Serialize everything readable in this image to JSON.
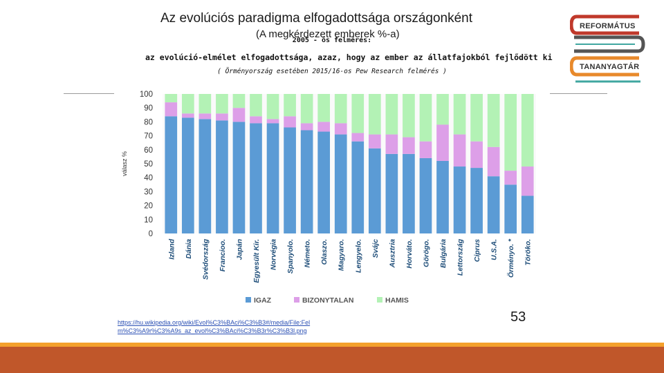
{
  "slide": {
    "title": "Az evolúciós paradigma elfogadottsága országonként",
    "subtitle": "(A megkérdezett emberek %-a)",
    "page_number": "53",
    "source_link_line1": "https://hu.wikipedia.org/wiki/Evol%C3%BAci%C3%B3#/media/File:Fel",
    "source_link_line2": "m%C3%A9r%C3%A9s_az_evol%C3%BAci%C3%B3r%C3%B3l.png",
    "survey_label": "2005 - ös felmérés:",
    "survey_statement": "az evolúció-elmélet elfogadottsága, azaz, hogy az ember az állatfajokból fejlődött ki",
    "survey_note": "( Örményország esetében 2015/16-os Pew Research felmérés )"
  },
  "logo": {
    "line1": "REFORMÁTUS",
    "line2": "TANANYAGTÁR",
    "icon": "book-stack-logo",
    "colors": {
      "red": "#c0392b",
      "gray": "#555555",
      "orange": "#e8892b",
      "teal": "#3fa6a0"
    }
  },
  "chart_data": {
    "type": "bar",
    "stacked": true,
    "ylabel": "válasz %",
    "xlabel": "",
    "ylim": [
      0,
      100
    ],
    "yticks": [
      0,
      10,
      20,
      30,
      40,
      50,
      60,
      70,
      80,
      90,
      100
    ],
    "grid": false,
    "legend_position": "bottom",
    "categories": [
      "Izland",
      "Dánia",
      "Svédország",
      "Francioo.",
      "Japán",
      "Egyesült Kir.",
      "Norvégia",
      "Spanyolo.",
      "Németo.",
      "Olaszo.",
      "Magyaro.",
      "Lengyelo.",
      "Svájc",
      "Ausztria",
      "Horváto.",
      "Görögo.",
      "Bulgária",
      "Lettország",
      "Ciprus",
      "U.S.A.",
      "Örményo. *",
      "Töröko."
    ],
    "series": [
      {
        "name": "IGAZ",
        "color": "#5b9bd5",
        "values": [
          84,
          83,
          82,
          81,
          80,
          79,
          79,
          76,
          74,
          73,
          71,
          66,
          61,
          57,
          57,
          54,
          52,
          48,
          47,
          41,
          35,
          27
        ]
      },
      {
        "name": "BIZONYTALAN",
        "color": "#dd9fe8",
        "values": [
          10,
          3,
          4,
          5,
          10,
          5,
          3,
          8,
          5,
          7,
          8,
          6,
          10,
          14,
          12,
          12,
          26,
          23,
          19,
          21,
          10,
          21
        ]
      },
      {
        "name": "HAMIS",
        "color": "#b3f2b5",
        "values": [
          6,
          14,
          14,
          14,
          10,
          16,
          18,
          16,
          21,
          20,
          21,
          28,
          29,
          29,
          31,
          34,
          22,
          29,
          34,
          38,
          55,
          52
        ]
      }
    ]
  }
}
